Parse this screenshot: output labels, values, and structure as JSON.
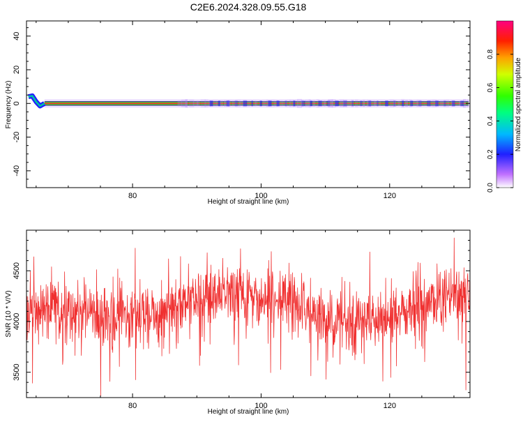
{
  "title": "C2E6.2024.328.09.55.G18",
  "colors": {
    "snr_line": "#f03030",
    "tone_center": "#dd2020",
    "tone_edge": "#1a8f3a"
  },
  "chart_data": [
    {
      "type": "heatmap",
      "xlabel": "Height of straight line (km)",
      "ylabel": "Frequency (Hz)",
      "xlim": [
        63.5,
        132.5
      ],
      "ylim": [
        -50,
        49
      ],
      "xticks": [
        80,
        100,
        120
      ],
      "yticks": [
        -40,
        -20,
        0,
        20,
        40
      ],
      "tone_frequency": 0,
      "tone_start_wobble": [
        {
          "x": 63.8,
          "f": 4
        },
        {
          "x": 64.4,
          "f": 4.5
        },
        {
          "x": 65.0,
          "f": 1
        },
        {
          "x": 65.6,
          "f": -1.5
        },
        {
          "x": 66.3,
          "f": 0
        }
      ],
      "colorbar": {
        "label": "Normalized spectral amplitude",
        "range": [
          0,
          1
        ],
        "ticks": [
          "0.0",
          "0.2",
          "0.4",
          "0.6",
          "0.8"
        ],
        "tick_values": [
          0,
          0.2,
          0.4,
          0.6,
          0.8
        ]
      }
    },
    {
      "type": "line",
      "xlabel": "Height of straight line (km)",
      "ylabel": "SNR (10 * V/V)",
      "xlim": [
        63.5,
        132.5
      ],
      "ylim": [
        3250,
        4900
      ],
      "xticks": [
        80,
        100,
        120
      ],
      "yticks": [
        3500,
        4000,
        4500
      ],
      "series": [
        {
          "x_start": 63.5,
          "x_end": 132.5,
          "trend_x": [
            63.5,
            70,
            75,
            80,
            85,
            90,
            95,
            100,
            105,
            110,
            115,
            120,
            125,
            130,
            132.5
          ],
          "trend_y": [
            4100,
            4120,
            4080,
            4050,
            4060,
            4220,
            4240,
            4200,
            4180,
            4050,
            4000,
            4040,
            4150,
            4250,
            4200
          ],
          "noise_std": 150
        }
      ]
    }
  ]
}
